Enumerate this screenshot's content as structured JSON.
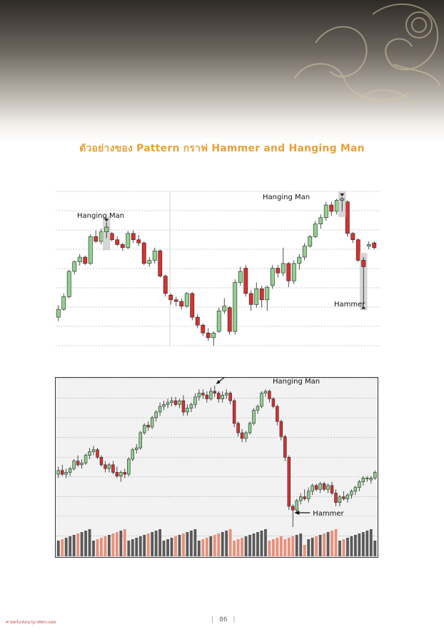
{
  "page": {
    "title": "ตัวอย่างของ Pattern กราฟ Hammer and Hanging Man",
    "footer_left": "ศาสตร์แห่งเมรุมาศพระยอด",
    "page_number": "86",
    "accent_color": "#e8a13a"
  },
  "chart_data": [
    {
      "type": "candlestick",
      "annotations": [
        "Hanging Man",
        "Hanging Man",
        "Hammer"
      ],
      "up_color": "#8fd18f",
      "down_color": "#d93030",
      "grid": true,
      "ohlc": [
        [
          20,
          21.5,
          19.5,
          21
        ],
        [
          21,
          23,
          20.8,
          22.6
        ],
        [
          22.6,
          26,
          22.4,
          25.8
        ],
        [
          25.8,
          27.2,
          25.4,
          27
        ],
        [
          27,
          28,
          26.5,
          27.6
        ],
        [
          27.6,
          27.8,
          26.6,
          26.8
        ],
        [
          26.8,
          30.5,
          26.6,
          30.2
        ],
        [
          30.2,
          31,
          29.4,
          29.6
        ],
        [
          29.6,
          31.2,
          29.2,
          30.8
        ],
        [
          30.8,
          32,
          30,
          31.4
        ],
        [
          30.6,
          30.8,
          29.6,
          29.8
        ],
        [
          29.8,
          30.2,
          29,
          29.2
        ],
        [
          29.2,
          29.4,
          28.4,
          28.8
        ],
        [
          28.8,
          30.9,
          28.6,
          30.6
        ],
        [
          30.6,
          31,
          29.4,
          29.8
        ],
        [
          29.8,
          30.4,
          29,
          29.4
        ],
        [
          29.4,
          29.6,
          26.6,
          26.8
        ],
        [
          26.8,
          27.6,
          26.4,
          27.2
        ],
        [
          27.2,
          28.8,
          26.8,
          28.4
        ],
        [
          28.4,
          28.6,
          25,
          25.2
        ],
        [
          25.2,
          25.4,
          22.6,
          23
        ],
        [
          22.8,
          23,
          21.6,
          22.2
        ],
        [
          22.2,
          22.6,
          21.4,
          22
        ],
        [
          22,
          22.4,
          21,
          21.4
        ],
        [
          21.4,
          23.2,
          21.2,
          23
        ],
        [
          23,
          23.2,
          19.6,
          20
        ],
        [
          20,
          20.4,
          18.6,
          19
        ],
        [
          19,
          19.2,
          17.6,
          18
        ],
        [
          18,
          18.6,
          17,
          17.4
        ],
        [
          17.4,
          18.2,
          16.4,
          18
        ],
        [
          18.2,
          21.2,
          18,
          20.8
        ],
        [
          20.8,
          22.4,
          20.4,
          21.4
        ],
        [
          21.2,
          21.4,
          17.8,
          18.2
        ],
        [
          18.2,
          24.8,
          17.8,
          24.4
        ],
        [
          24.4,
          26.4,
          24,
          25.8
        ],
        [
          26.2,
          26.6,
          22.6,
          23
        ],
        [
          23,
          23.4,
          20.8,
          21.6
        ],
        [
          21.6,
          24.4,
          21.2,
          23.6
        ],
        [
          23.6,
          24,
          21.2,
          22.2
        ],
        [
          22.2,
          24,
          20.8,
          23.8
        ],
        [
          24,
          26.6,
          23.6,
          26.2
        ],
        [
          26.2,
          26.6,
          25,
          25.6
        ],
        [
          25.6,
          28.8,
          25.2,
          26.8
        ],
        [
          26.8,
          27,
          23.8,
          24.6
        ],
        [
          24.6,
          27.2,
          24.2,
          26.8
        ],
        [
          26.8,
          28,
          26,
          27.6
        ],
        [
          27.6,
          29.4,
          27.2,
          29
        ],
        [
          29,
          30.4,
          28.8,
          30.2
        ],
        [
          30.2,
          32.2,
          30,
          31.8
        ],
        [
          31.8,
          33,
          31.2,
          32.6
        ],
        [
          32.6,
          34.6,
          32.2,
          34.2
        ],
        [
          34.2,
          34.6,
          32.8,
          33.4
        ],
        [
          33.4,
          35,
          33,
          34.8
        ],
        [
          34.8,
          35.2,
          33.4,
          35
        ],
        [
          34.6,
          34.8,
          30.2,
          30.6
        ],
        [
          30.6,
          30.8,
          29.4,
          29.8
        ],
        [
          29.8,
          30,
          27,
          27.2
        ],
        [
          27.2,
          27.6,
          21.6,
          26.4
        ],
        [
          29,
          29.6,
          28.6,
          29.2
        ],
        [
          29.4,
          29.6,
          28.6,
          28.8
        ]
      ]
    },
    {
      "type": "candlestick",
      "annotations": [
        "Hanging Man",
        "Hammer"
      ],
      "up_color": "#8fd18f",
      "down_color": "#d93030",
      "volume_up_color": "#5a5a5a",
      "volume_down_color": "#e8907a",
      "grid": true,
      "ohlc": [
        [
          18,
          18.8,
          17.6,
          18.4
        ],
        [
          18.4,
          19,
          17.8,
          18
        ],
        [
          18,
          18.6,
          17.6,
          18.2
        ],
        [
          18.2,
          18.8,
          17.8,
          18.6
        ],
        [
          18.6,
          19.6,
          18.4,
          19.4
        ],
        [
          19.4,
          20,
          18.8,
          19
        ],
        [
          19,
          19.6,
          18.6,
          19.2
        ],
        [
          19.2,
          20.2,
          19,
          20
        ],
        [
          20,
          20.8,
          19.6,
          20.4
        ],
        [
          20.4,
          21,
          20,
          20.6
        ],
        [
          20.6,
          20.8,
          19.6,
          19.8
        ],
        [
          19.8,
          20,
          18.8,
          19
        ],
        [
          19,
          19.4,
          18.2,
          18.6
        ],
        [
          18.6,
          19.2,
          18.2,
          19
        ],
        [
          19,
          19.4,
          18,
          18.2
        ],
        [
          18.2,
          18.8,
          17.6,
          17.8
        ],
        [
          17.8,
          18.4,
          17.2,
          18.2
        ],
        [
          18.2,
          18.6,
          17.6,
          18
        ],
        [
          18,
          19.8,
          17.8,
          19.6
        ],
        [
          19.6,
          20.8,
          19.4,
          20.6
        ],
        [
          20.6,
          21.2,
          20.2,
          20.8
        ],
        [
          20.8,
          22.6,
          20.6,
          22.4
        ],
        [
          22.4,
          23.4,
          22.2,
          23.2
        ],
        [
          23.2,
          23.6,
          22.6,
          23
        ],
        [
          23,
          24.2,
          22.8,
          24
        ],
        [
          24,
          24.8,
          23.6,
          24.6
        ],
        [
          24.6,
          25.6,
          24.2,
          25.2
        ],
        [
          25.2,
          25.8,
          24.8,
          25.4
        ],
        [
          25.4,
          26,
          25,
          25.6
        ],
        [
          25.6,
          26.2,
          25.2,
          25.8
        ],
        [
          25.8,
          26.2,
          25.2,
          25.4
        ],
        [
          25.4,
          26,
          25,
          25.8
        ],
        [
          25.8,
          26.4,
          24.2,
          24.6
        ],
        [
          24.6,
          25.4,
          24.2,
          25
        ],
        [
          25,
          25.6,
          24.6,
          25.4
        ],
        [
          25.4,
          26.6,
          25,
          26.2
        ],
        [
          26.2,
          27,
          25.8,
          26.6
        ],
        [
          26.6,
          27,
          26,
          26.4
        ],
        [
          26.4,
          26.8,
          25.6,
          26
        ],
        [
          26,
          27.2,
          25.8,
          26.8
        ],
        [
          26.8,
          27.4,
          26.2,
          26.6
        ],
        [
          26.6,
          26.8,
          25.6,
          26
        ],
        [
          26,
          26.8,
          25.6,
          26.4
        ],
        [
          26.4,
          27,
          26,
          26.6
        ],
        [
          26.6,
          26.8,
          25.4,
          25.8
        ],
        [
          25.8,
          26,
          23,
          23.4
        ],
        [
          23.4,
          23.6,
          22,
          22.4
        ],
        [
          22.4,
          22.8,
          21.4,
          21.8
        ],
        [
          21.8,
          22.6,
          21.4,
          22.4
        ],
        [
          22.4,
          23.6,
          22.2,
          23.4
        ],
        [
          23.4,
          25,
          23.2,
          24.8
        ],
        [
          24.8,
          25.4,
          24.4,
          25.2
        ],
        [
          25.2,
          26.8,
          25,
          26.6
        ],
        [
          26.6,
          27,
          26.2,
          26.8
        ],
        [
          26.8,
          27,
          25.6,
          26
        ],
        [
          26,
          26.2,
          25,
          25.2
        ],
        [
          25.2,
          25.4,
          23.2,
          23.6
        ],
        [
          23.6,
          23.8,
          21.6,
          22
        ],
        [
          22,
          22.2,
          19.4,
          19.8
        ],
        [
          19.8,
          20,
          14.2,
          14.6
        ],
        [
          14.6,
          14.8,
          12.4,
          14.2
        ],
        [
          14.2,
          15.4,
          13.8,
          15.2
        ],
        [
          15.2,
          16,
          14.8,
          15.6
        ],
        [
          15.6,
          16.4,
          15.2,
          15.4
        ],
        [
          15.4,
          16.6,
          15,
          16.2
        ],
        [
          16.2,
          17,
          15.8,
          16.8
        ],
        [
          16.8,
          17,
          16.2,
          16.4
        ],
        [
          16.4,
          17.2,
          16,
          17
        ],
        [
          17,
          17.2,
          16.2,
          16.4
        ],
        [
          16.4,
          17,
          16,
          16.8
        ],
        [
          16.8,
          17.2,
          15.8,
          16
        ],
        [
          16,
          16.4,
          14.6,
          15
        ],
        [
          15,
          15.8,
          14.6,
          15.6
        ],
        [
          15.6,
          16.2,
          15.2,
          15.4
        ],
        [
          15.4,
          16,
          15,
          15.8
        ],
        [
          15.8,
          16.4,
          15.4,
          16.2
        ],
        [
          16.2,
          16.8,
          15.8,
          16.6
        ],
        [
          16.6,
          17.4,
          16.2,
          17.2
        ],
        [
          17.2,
          17.8,
          16.8,
          17.6
        ],
        [
          17.6,
          17.8,
          17.2,
          17.6
        ],
        [
          17.4,
          17.8,
          17,
          17.6
        ],
        [
          17.6,
          18.4,
          17.4,
          18.2
        ]
      ]
    }
  ]
}
